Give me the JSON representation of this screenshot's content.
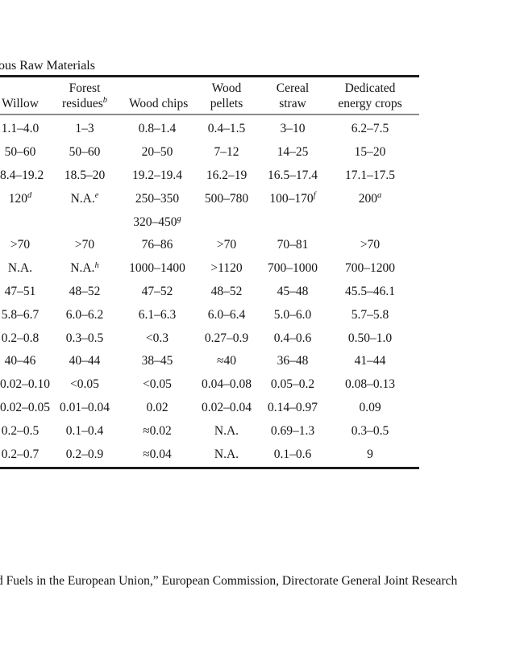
{
  "page": {
    "title_fragment": "ous Raw Materials",
    "footer_fragment": "d Fuels in the European Union,” European Commission, Directorate General Joint Research"
  },
  "table": {
    "headers": [
      {
        "line1": "",
        "line2": "Willow",
        "sup": ""
      },
      {
        "line1": "Forest",
        "line2": "residues",
        "sup": "b"
      },
      {
        "line1": "",
        "line2": "Wood chips",
        "sup": ""
      },
      {
        "line1": "Wood",
        "line2": "pellets",
        "sup": ""
      },
      {
        "line1": "Cereal",
        "line2": "straw",
        "sup": ""
      },
      {
        "line1": "Dedicated",
        "line2": "energy crops",
        "sup": ""
      }
    ],
    "rows": [
      [
        {
          "t": "1.1–4.0"
        },
        {
          "t": "1–3"
        },
        {
          "t": "0.8–1.4"
        },
        {
          "t": "0.4–1.5"
        },
        {
          "t": "3–10"
        },
        {
          "t": "6.2–7.5"
        }
      ],
      [
        {
          "t": "50–60"
        },
        {
          "t": "50–60"
        },
        {
          "t": "20–50"
        },
        {
          "t": "7–12"
        },
        {
          "t": "14–25"
        },
        {
          "t": "15–20"
        }
      ],
      [
        {
          "t": "8.4–19.2"
        },
        {
          "t": "18.5–20"
        },
        {
          "t": "19.2–19.4"
        },
        {
          "t": "16.2–19"
        },
        {
          "t": "16.5–17.4"
        },
        {
          "t": "17.1–17.5"
        }
      ],
      [
        {
          "t": "120",
          "sup": "d"
        },
        {
          "t": "N.A.",
          "sup": "e"
        },
        {
          "t": "250–350"
        },
        {
          "t": "500–780"
        },
        {
          "t": "100–170",
          "sup": "f"
        },
        {
          "t": "200",
          "sup": "a"
        }
      ],
      [
        {
          "t": ""
        },
        {
          "t": ""
        },
        {
          "t": "320–450",
          "sup": "g"
        },
        {
          "t": ""
        },
        {
          "t": ""
        },
        {
          "t": ""
        }
      ],
      [
        {
          "t": ">70"
        },
        {
          "t": ">70"
        },
        {
          "t": "76–86"
        },
        {
          "t": ">70"
        },
        {
          "t": "70–81"
        },
        {
          "t": ">70"
        }
      ],
      [
        {
          "t": "N.A."
        },
        {
          "t": "N.A.",
          "sup": "h"
        },
        {
          "t": "1000–1400"
        },
        {
          "t": ">1120"
        },
        {
          "t": "700–1000"
        },
        {
          "t": "700–1200"
        }
      ],
      [
        {
          "t": "47–51"
        },
        {
          "t": "48–52"
        },
        {
          "t": "47–52"
        },
        {
          "t": "48–52"
        },
        {
          "t": "45–48"
        },
        {
          "t": "45.5–46.1"
        }
      ],
      [
        {
          "t": "5.8–6.7"
        },
        {
          "t": "6.0–6.2"
        },
        {
          "t": "6.1–6.3"
        },
        {
          "t": "6.0–6.4"
        },
        {
          "t": "5.0–6.0"
        },
        {
          "t": "5.7–5.8"
        }
      ],
      [
        {
          "t": "0.2–0.8"
        },
        {
          "t": "0.3–0.5"
        },
        {
          "t": "<0.3"
        },
        {
          "t": "0.27–0.9"
        },
        {
          "t": "0.4–0.6"
        },
        {
          "t": "0.50–1.0"
        }
      ],
      [
        {
          "t": "40–46"
        },
        {
          "t": "40–44"
        },
        {
          "t": "38–45"
        },
        {
          "t": "≈40"
        },
        {
          "t": "36–48"
        },
        {
          "t": "41–44"
        }
      ],
      [
        {
          "t": "0.02–0.10"
        },
        {
          "t": "<0.05"
        },
        {
          "t": "<0.05"
        },
        {
          "t": "0.04–0.08"
        },
        {
          "t": "0.05–0.2"
        },
        {
          "t": "0.08–0.13"
        }
      ],
      [
        {
          "t": "0.02–0.05"
        },
        {
          "t": "0.01–0.04"
        },
        {
          "t": "0.02"
        },
        {
          "t": "0.02–0.04"
        },
        {
          "t": "0.14–0.97"
        },
        {
          "t": "0.09"
        }
      ],
      [
        {
          "t": "0.2–0.5"
        },
        {
          "t": "0.1–0.4"
        },
        {
          "t": "≈0.02"
        },
        {
          "t": "N.A."
        },
        {
          "t": "0.69–1.3"
        },
        {
          "t": "0.3–0.5"
        }
      ],
      [
        {
          "t": "0.2–0.7"
        },
        {
          "t": "0.2–0.9"
        },
        {
          "t": "≈0.04"
        },
        {
          "t": "N.A."
        },
        {
          "t": "0.1–0.6"
        },
        {
          "t": "9"
        }
      ]
    ]
  }
}
